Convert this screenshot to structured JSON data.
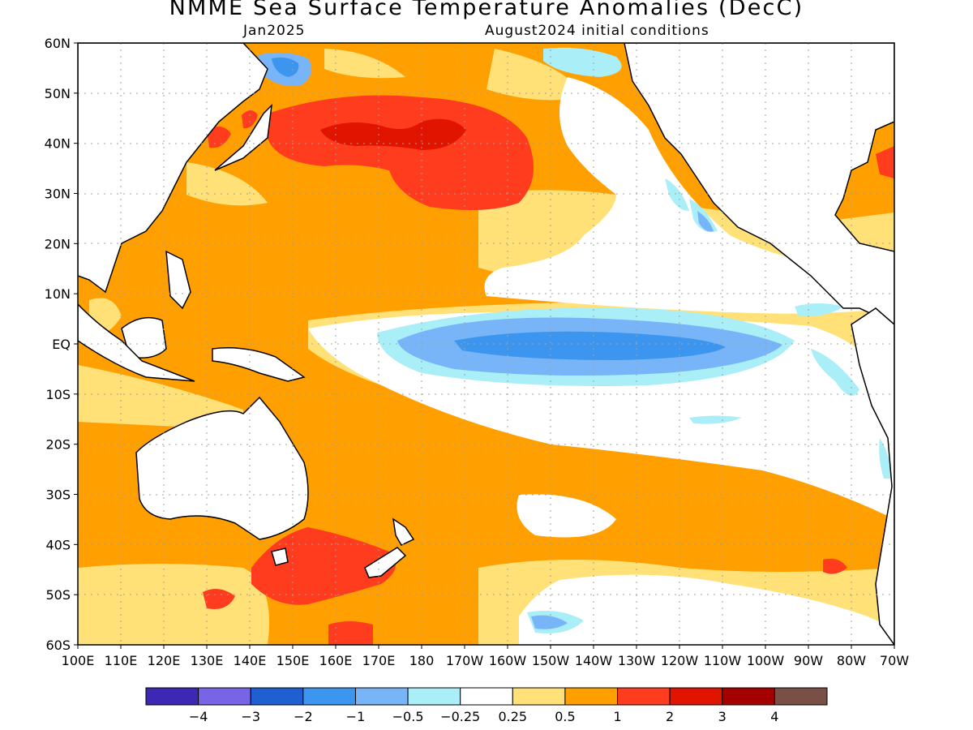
{
  "map": {
    "title": "NMME Sea Surface Temperature Anomalies (DecC)",
    "subtitle_left": "Jan2025",
    "subtitle_right": "August2024 initial conditions",
    "region": "Pacific Ocean",
    "lat_ticks": [
      "60N",
      "50N",
      "40N",
      "30N",
      "20N",
      "10N",
      "EQ",
      "10S",
      "20S",
      "30S",
      "40S",
      "50S",
      "60S"
    ],
    "lon_ticks": [
      "100E",
      "110E",
      "120E",
      "130E",
      "140E",
      "150E",
      "160E",
      "170E",
      "180",
      "170W",
      "160W",
      "150W",
      "140W",
      "130W",
      "120W",
      "110W",
      "100W",
      "90W",
      "80W",
      "70W"
    ]
  },
  "colorbar": {
    "colors": [
      "#3c28b4",
      "#7864e6",
      "#1e5fd2",
      "#3c96f0",
      "#78b4f8",
      "#aaeef8",
      "#ffffff",
      "#ffe178",
      "#ffa000",
      "#ff3c1e",
      "#e11400",
      "#a50000",
      "#785046"
    ],
    "labels": [
      "−4",
      "−3",
      "−2",
      "−1",
      "−0.5",
      "−0.25",
      "0.25",
      "0.5",
      "1",
      "2",
      "3",
      "4"
    ]
  },
  "colors": {
    "land": "#ffffff",
    "coastline": "#000000",
    "grid": "#a0a0a0"
  }
}
